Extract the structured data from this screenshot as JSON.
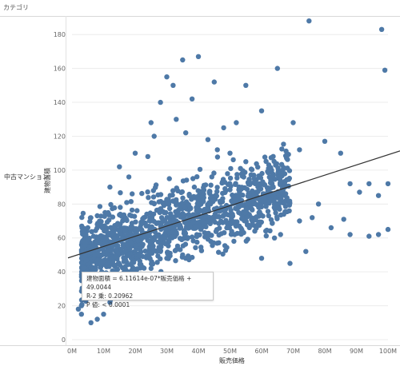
{
  "header": {
    "label": "カテゴリ"
  },
  "row": {
    "label": "中古マンション"
  },
  "tooltip": {
    "equation": "建物面積 = 6.11614e-07*販売価格 + 49.0044",
    "r_squared": "R-2 乗: 0.20962",
    "p_value": "P 値: < 0.0001"
  },
  "chart_data": {
    "type": "scatter",
    "xlabel": "販売価格",
    "ylabel": "建物面積",
    "xlim": [
      0,
      100000000
    ],
    "ylim": [
      0,
      190
    ],
    "x_ticks": [
      "0M",
      "10M",
      "20M",
      "30M",
      "40M",
      "50M",
      "60M",
      "70M",
      "80M",
      "90M",
      "100M"
    ],
    "y_ticks": [
      "0",
      "20",
      "40",
      "60",
      "80",
      "100",
      "120",
      "140",
      "160",
      "180"
    ],
    "grid": true,
    "trend_line": {
      "slope": 6.11614e-07,
      "intercept": 49.0044
    },
    "colors": {
      "points": "#4e79a7",
      "trend": "#333333",
      "grid": "#ececec"
    },
    "points": [
      [
        75000000,
        188
      ],
      [
        98000000,
        183
      ],
      [
        99000000,
        159
      ],
      [
        65000000,
        160
      ],
      [
        40000000,
        167
      ],
      [
        35000000,
        165
      ],
      [
        28000000,
        140
      ],
      [
        30000000,
        155
      ],
      [
        32000000,
        150
      ],
      [
        45000000,
        152
      ],
      [
        55000000,
        150
      ],
      [
        25000000,
        128
      ],
      [
        38000000,
        142
      ],
      [
        52000000,
        128
      ],
      [
        60000000,
        135
      ],
      [
        48000000,
        125
      ],
      [
        70000000,
        128
      ],
      [
        72000000,
        112
      ],
      [
        80000000,
        117
      ],
      [
        85000000,
        110
      ],
      [
        88000000,
        92
      ],
      [
        91000000,
        87
      ],
      [
        94000000,
        92
      ],
      [
        97000000,
        85
      ],
      [
        100000000,
        92
      ],
      [
        100000000,
        65
      ],
      [
        97000000,
        62
      ],
      [
        94000000,
        61
      ],
      [
        88000000,
        62
      ],
      [
        86000000,
        71
      ],
      [
        78000000,
        80
      ],
      [
        76000000,
        72
      ],
      [
        82000000,
        66
      ],
      [
        72000000,
        70
      ],
      [
        66000000,
        62
      ],
      [
        60000000,
        48
      ],
      [
        69000000,
        45
      ],
      [
        74000000,
        52
      ],
      [
        62000000,
        88
      ],
      [
        64000000,
        78
      ],
      [
        58000000,
        92
      ],
      [
        55000000,
        105
      ],
      [
        50000000,
        110
      ],
      [
        46000000,
        112
      ],
      [
        43000000,
        118
      ],
      [
        36000000,
        122
      ],
      [
        33000000,
        130
      ],
      [
        26000000,
        120
      ],
      [
        24000000,
        108
      ],
      [
        20000000,
        110
      ],
      [
        18000000,
        96
      ],
      [
        15000000,
        102
      ],
      [
        12000000,
        90
      ],
      [
        8000000,
        68
      ],
      [
        5000000,
        66
      ],
      [
        4000000,
        55
      ],
      [
        3000000,
        15
      ],
      [
        2000000,
        18
      ],
      [
        3000000,
        20
      ],
      [
        10000000,
        15
      ],
      [
        8000000,
        12
      ],
      [
        6000000,
        10
      ],
      [
        18000000,
        25
      ],
      [
        22000000,
        30
      ],
      [
        12000000,
        22
      ],
      [
        15000000,
        35
      ],
      [
        25000000,
        42
      ],
      [
        30000000,
        48
      ],
      [
        35000000,
        50
      ],
      [
        28000000,
        52
      ]
    ]
  }
}
